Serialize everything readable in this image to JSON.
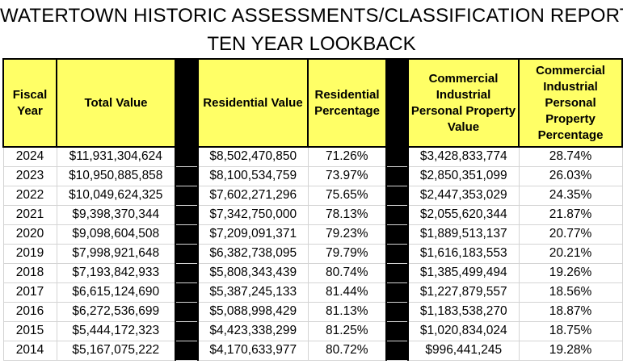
{
  "report": {
    "title": "WATERTOWN HISTORIC ASSESSMENTS/CLASSIFICATION REPORT",
    "subtitle": "TEN YEAR LOOKBACK"
  },
  "headers": {
    "fiscal_year": "Fiscal Year",
    "total_value": "Total Value",
    "residential_value": "Residential Value",
    "residential_percentage": "Residential Percentage",
    "cip_value": "Commercial Industrial Personal Property Value",
    "cip_percentage": "Commercial Industrial Personal Property Percentage"
  },
  "rows": [
    {
      "year": "2024",
      "total": "$11,931,304,624",
      "res_value": "$8,502,470,850",
      "res_pct": "71.26%",
      "cip_value": "$3,428,833,774",
      "cip_pct": "28.74%"
    },
    {
      "year": "2023",
      "total": "$10,950,885,858",
      "res_value": "$8,100,534,759",
      "res_pct": "73.97%",
      "cip_value": "$2,850,351,099",
      "cip_pct": "26.03%"
    },
    {
      "year": "2022",
      "total": "$10,049,624,325",
      "res_value": "$7,602,271,296",
      "res_pct": "75.65%",
      "cip_value": "$2,447,353,029",
      "cip_pct": "24.35%"
    },
    {
      "year": "2021",
      "total": "$9,398,370,344",
      "res_value": "$7,342,750,000",
      "res_pct": "78.13%",
      "cip_value": "$2,055,620,344",
      "cip_pct": "21.87%"
    },
    {
      "year": "2020",
      "total": "$9,098,604,508",
      "res_value": "$7,209,091,371",
      "res_pct": "79.23%",
      "cip_value": "$1,889,513,137",
      "cip_pct": "20.77%"
    },
    {
      "year": "2019",
      "total": "$7,998,921,648",
      "res_value": "$6,382,738,095",
      "res_pct": "79.79%",
      "cip_value": "$1,616,183,553",
      "cip_pct": "20.21%"
    },
    {
      "year": "2018",
      "total": "$7,193,842,933",
      "res_value": "$5,808,343,439",
      "res_pct": "80.74%",
      "cip_value": "$1,385,499,494",
      "cip_pct": "19.26%"
    },
    {
      "year": "2017",
      "total": "$6,615,124,690",
      "res_value": "$5,387,245,133",
      "res_pct": "81.44%",
      "cip_value": "$1,227,879,557",
      "cip_pct": "18.56%"
    },
    {
      "year": "2016",
      "total": "$6,272,536,699",
      "res_value": "$5,088,998,429",
      "res_pct": "81.13%",
      "cip_value": "$1,183,538,270",
      "cip_pct": "18.87%"
    },
    {
      "year": "2015",
      "total": "$5,444,172,323",
      "res_value": "$4,423,338,299",
      "res_pct": "81.25%",
      "cip_value": "$1,020,834,024",
      "cip_pct": "18.75%"
    },
    {
      "year": "2014",
      "total": "$5,167,075,222",
      "res_value": "$4,170,633,977",
      "res_pct": "80.72%",
      "cip_value": "$996,441,245",
      "cip_pct": "19.28%"
    }
  ],
  "colors": {
    "header_fill": "#ffff66",
    "separator": "#000000",
    "gridline": "#d4d4d4"
  }
}
